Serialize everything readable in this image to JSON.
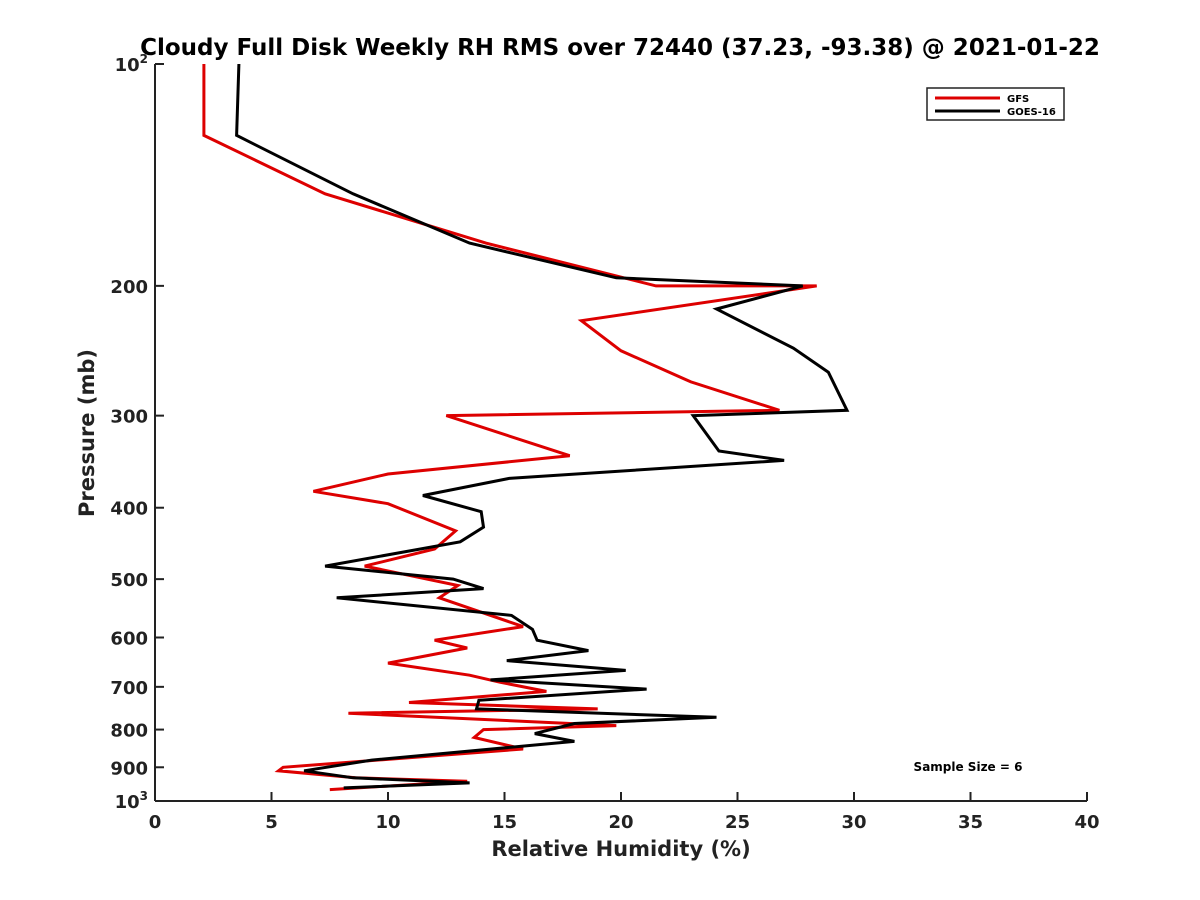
{
  "chart_data": {
    "type": "line",
    "title": "Cloudy Full Disk Weekly RH RMS over 72440 (37.23, -93.38) @ 2021-01-22",
    "xlabel": "Relative Humidity (%)",
    "ylabel": "Pressure (mb)",
    "xlim": [
      0,
      40
    ],
    "ylim": [
      100,
      1000
    ],
    "yscale": "log",
    "y_reversed": true,
    "grid": false,
    "legend_position": "top-right",
    "x_ticks": [
      0,
      5,
      10,
      15,
      20,
      25,
      30,
      35,
      40
    ],
    "x_tick_labels": [
      "0",
      "5",
      "10",
      "15",
      "20",
      "25",
      "30",
      "35",
      "40"
    ],
    "y_ticks": [
      {
        "value": 100,
        "base": "10",
        "exp": "2"
      },
      {
        "value": 200,
        "base": "200",
        "exp": ""
      },
      {
        "value": 300,
        "base": "300",
        "exp": ""
      },
      {
        "value": 400,
        "base": "400",
        "exp": ""
      },
      {
        "value": 500,
        "base": "500",
        "exp": ""
      },
      {
        "value": 600,
        "base": "600",
        "exp": ""
      },
      {
        "value": 700,
        "base": "700",
        "exp": ""
      },
      {
        "value": 800,
        "base": "800",
        "exp": ""
      },
      {
        "value": 900,
        "base": "900",
        "exp": ""
      },
      {
        "value": 1000,
        "base": "10",
        "exp": "3"
      }
    ],
    "annotation": "Sample Size = 6",
    "series": [
      {
        "name": "GFS",
        "color": "#dd0000",
        "points": [
          [
            2.1,
            100
          ],
          [
            2.1,
            125
          ],
          [
            7.3,
            150
          ],
          [
            14.2,
            175
          ],
          [
            21.5,
            200
          ],
          [
            28.4,
            200
          ],
          [
            18.3,
            223
          ],
          [
            20.0,
            245
          ],
          [
            23.0,
            270
          ],
          [
            26.8,
            295
          ],
          [
            12.5,
            300
          ],
          [
            17.8,
            340
          ],
          [
            10.0,
            360
          ],
          [
            6.8,
            380
          ],
          [
            10.0,
            395
          ],
          [
            12.9,
            430
          ],
          [
            12.0,
            455
          ],
          [
            9.0,
            480
          ],
          [
            13.0,
            510
          ],
          [
            12.2,
            530
          ],
          [
            15.8,
            580
          ],
          [
            12.0,
            605
          ],
          [
            13.4,
            620
          ],
          [
            10.0,
            650
          ],
          [
            13.5,
            675
          ],
          [
            14.8,
            690
          ],
          [
            16.8,
            710
          ],
          [
            10.9,
            735
          ],
          [
            19.0,
            750
          ],
          [
            8.3,
            760
          ],
          [
            19.8,
            790
          ],
          [
            14.1,
            800
          ],
          [
            13.7,
            820
          ],
          [
            15.8,
            850
          ],
          [
            5.5,
            900
          ],
          [
            5.3,
            910
          ],
          [
            8.6,
            930
          ],
          [
            13.4,
            940
          ],
          [
            7.5,
            965
          ]
        ]
      },
      {
        "name": "GOES-16",
        "color": "#000000",
        "points": [
          [
            3.6,
            100
          ],
          [
            3.5,
            125
          ],
          [
            8.5,
            150
          ],
          [
            13.5,
            175
          ],
          [
            19.8,
            195
          ],
          [
            27.8,
            200
          ],
          [
            24.1,
            215
          ],
          [
            27.4,
            243
          ],
          [
            28.9,
            262
          ],
          [
            29.7,
            295
          ],
          [
            23.1,
            300
          ],
          [
            24.2,
            335
          ],
          [
            27.0,
            345
          ],
          [
            15.2,
            365
          ],
          [
            11.5,
            385
          ],
          [
            14.0,
            405
          ],
          [
            14.1,
            425
          ],
          [
            13.1,
            445
          ],
          [
            7.3,
            480
          ],
          [
            12.8,
            500
          ],
          [
            14.1,
            515
          ],
          [
            7.8,
            530
          ],
          [
            15.3,
            560
          ],
          [
            16.2,
            585
          ],
          [
            16.4,
            605
          ],
          [
            18.6,
            625
          ],
          [
            15.1,
            645
          ],
          [
            20.2,
            665
          ],
          [
            14.4,
            685
          ],
          [
            21.1,
            705
          ],
          [
            13.9,
            730
          ],
          [
            13.8,
            750
          ],
          [
            24.1,
            770
          ],
          [
            18.0,
            785
          ],
          [
            16.3,
            810
          ],
          [
            18.0,
            830
          ],
          [
            9.3,
            880
          ],
          [
            6.4,
            910
          ],
          [
            8.5,
            930
          ],
          [
            13.5,
            945
          ],
          [
            8.1,
            960
          ]
        ]
      }
    ]
  }
}
